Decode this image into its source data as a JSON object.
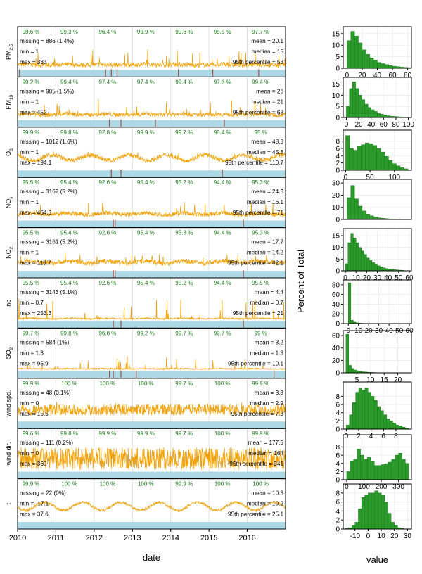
{
  "colors": {
    "series": "#f0a30a",
    "pct": "#1a7a1a",
    "bar_strip": "#add8e6",
    "missing_mark": "#a0524b",
    "hist": "#2a9a2a",
    "hist_edge": "#1b6e1b",
    "grid": "#d9d9d9"
  },
  "chart_data": [
    {
      "type": "line",
      "title": "",
      "xlabel": "date",
      "ylabel": "",
      "x_ticks": [
        "2010",
        "2011",
        "2012",
        "2013",
        "2014",
        "2015",
        "2016"
      ],
      "x_range": [
        "2010-01-01",
        "2016-12-31"
      ],
      "panels": [
        {
          "name": "PM",
          "sub": "2.5",
          "year_pct": [
            "98.6 %",
            "99.3 %",
            "96.4 %",
            "99.9 %",
            "99.6 %",
            "98.5 %",
            "97.7 %"
          ],
          "missing": "missing = 886 (1.4%)",
          "min": "min = 1",
          "max": "max = 333",
          "mean": "mean = 20.1",
          "median": "median = 15",
          "p95": "95th percentile = 53",
          "missing_marks": [
            2010.05,
            2012.3,
            2012.45,
            2012.6,
            2014.2,
            2015.1,
            2016.3
          ]
        },
        {
          "name": "PM",
          "sub": "10",
          "year_pct": [
            "99.2 %",
            "99.4 %",
            "97.4 %",
            "97.4 %",
            "99.4 %",
            "97.6 %",
            "99.4 %"
          ],
          "missing": "missing = 905 (1.5%)",
          "min": "min = 1",
          "max": "max = 452",
          "mean": "mean = 26",
          "median": "median = 21",
          "p95": "95th percentile = 63",
          "missing_marks": [
            2012.4,
            2012.7,
            2013.6,
            2015.4
          ]
        },
        {
          "name": "O",
          "sub": "3",
          "year_pct": [
            "99.9 %",
            "99.8 %",
            "97.8 %",
            "99.9 %",
            "99.7 %",
            "96.4 %",
            "95 %"
          ],
          "missing": "missing = 1012 (1.6%)",
          "min": "min = 1",
          "max": "max = 194.1",
          "mean": "mean = 48.8",
          "median": "median = 45.3",
          "p95": "95th percentile = 110.7",
          "missing_marks": [
            2012.45,
            2012.7,
            2015.35
          ]
        },
        {
          "name": "NO",
          "sub": "x",
          "year_pct": [
            "95.5 %",
            "95.4 %",
            "92.6 %",
            "95.4 %",
            "95.2 %",
            "94.4 %",
            "95.3 %"
          ],
          "missing": "missing = 3162 (5.2%)",
          "min": "min = 1",
          "max": "max = 464.3",
          "mean": "mean = 24.3",
          "median": "median = 16.1",
          "p95": "95th percentile = 71",
          "missing_marks": [
            2012.5,
            2012.55,
            2015.9
          ]
        },
        {
          "name": "NO",
          "sub": "2",
          "year_pct": [
            "95.5 %",
            "95.4 %",
            "92.6 %",
            "95.4 %",
            "95.3 %",
            "94.4 %",
            "95.3 %"
          ],
          "missing": "missing = 3161 (5.2%)",
          "min": "min = 1",
          "max": "max = 116.7",
          "mean": "mean = 17.7",
          "median": "median = 14.2",
          "p95": "95th percentile = 42.1",
          "missing_marks": [
            2012.5,
            2012.55,
            2015.9
          ]
        },
        {
          "name": "no",
          "sub": "",
          "year_pct": [
            "95.5 %",
            "95.4 %",
            "92.6 %",
            "95.4 %",
            "95.2 %",
            "94.4 %",
            "95.5 %"
          ],
          "missing": "missing = 3143 (5.1%)",
          "min": "min = 0.7",
          "max": "max = 253.3",
          "mean": "mean = 4.4",
          "median": "median = 0.7",
          "p95": "95th percentile = 21",
          "missing_marks": [
            2012.5,
            2012.7,
            2015.9
          ]
        },
        {
          "name": "SO",
          "sub": "2",
          "year_pct": [
            "99.7 %",
            "99.8 %",
            "96.8 %",
            "99.2 %",
            "99.7 %",
            "99.7 %",
            "99 %"
          ],
          "missing": "missing = 584 (1%)",
          "min": "min = 1.3",
          "max": "max = 95.9",
          "mean": "mean = 3.2",
          "median": "median = 1.3",
          "p95": "95th percentile = 10.1",
          "missing_marks": [
            2012.4,
            2012.5,
            2012.7,
            2013.1,
            2016.7
          ]
        },
        {
          "name": "wind spd.",
          "sub": "",
          "year_pct": [
            "99.9 %",
            "100 %",
            "100 %",
            "100 %",
            "99.7 %",
            "100 %",
            "99.9 %"
          ],
          "missing": "missing = 48 (0.1%)",
          "min": "min = 0",
          "max": "max = 15.5",
          "mean": "mean = 3.3",
          "median": "median = 2.9",
          "p95": "95th percentile = 7.3",
          "missing_marks": []
        },
        {
          "name": "wind dir.",
          "sub": "",
          "year_pct": [
            "99.6 %",
            "99.8 %",
            "99.9 %",
            "99.9 %",
            "99.7 %",
            "100 %",
            "99.9 %"
          ],
          "missing": "missing = 111 (0.2%)",
          "min": "min = 0",
          "max": "max = 360",
          "mean": "mean = 177.5",
          "median": "median = 164",
          "p95": "95th percentile = 341",
          "missing_marks": []
        },
        {
          "name": "t",
          "sub": "",
          "year_pct": [
            "99.9 %",
            "100 %",
            "100 %",
            "100 %",
            "99.9 %",
            "100 %",
            "100 %"
          ],
          "missing": "missing = 22 (0%)",
          "min": "min = -17.1",
          "max": "max = 37.6",
          "mean": "mean = 10.3",
          "median": "median = 10.2",
          "p95": "95th percentile = 25.1",
          "missing_marks": []
        }
      ]
    },
    {
      "type": "bar",
      "title": "",
      "xlabel": "value",
      "ylabel": "Percent of Total",
      "panels": [
        {
          "xlim": [
            -5,
            85
          ],
          "xticks": [
            0,
            20,
            40,
            60,
            80
          ],
          "ylim": [
            0,
            18
          ],
          "yticks": [
            0,
            5,
            10,
            15
          ],
          "bin_start": 0,
          "bin_width": 5,
          "values": [
            12,
            16,
            14,
            11,
            8,
            6,
            4.5,
            3.5,
            2.5,
            2,
            1.6,
            1.2,
            0.9,
            0.7,
            0.5,
            0.4,
            0.3
          ]
        },
        {
          "xlim": [
            -5,
            105
          ],
          "xticks": [
            0,
            20,
            40,
            60,
            80,
            100
          ],
          "ylim": [
            0,
            18
          ],
          "yticks": [
            0,
            5,
            10,
            15
          ],
          "bin_start": 0,
          "bin_width": 5,
          "values": [
            5,
            13,
            16,
            13,
            10,
            8,
            6,
            4.5,
            3.5,
            2.7,
            2,
            1.5,
            1.1,
            0.8,
            0.6,
            0.5,
            0.4,
            0.3,
            0.2
          ]
        },
        {
          "xlim": [
            -5,
            135
          ],
          "xticks": [
            0,
            50,
            100
          ],
          "ylim": [
            0,
            11
          ],
          "yticks": [
            0,
            2,
            4,
            6,
            8
          ],
          "bin_start": 0,
          "bin_width": 8,
          "values": [
            9.5,
            6,
            5.5,
            6.5,
            7,
            7.5,
            7.3,
            6.8,
            6,
            5,
            3.8,
            2.7,
            1.8,
            1.2,
            0.7,
            0.4
          ]
        },
        {
          "xlim": [
            -5,
            85
          ],
          "xticks": [],
          "ylim": [
            0,
            33
          ],
          "yticks": [
            0,
            10,
            20,
            30
          ],
          "bin_start": 0,
          "bin_width": 5,
          "values": [
            18,
            28,
            17,
            11,
            7,
            4.5,
            3,
            2,
            1.4,
            1,
            0.7,
            0.5,
            0.4,
            0.3
          ]
        },
        {
          "xlim": [
            -2,
            62
          ],
          "xticks": [
            0,
            10,
            20,
            30,
            40,
            50,
            60
          ],
          "ylim": [
            0,
            18
          ],
          "yticks": [
            0,
            5,
            10,
            15
          ],
          "bin_start": 0,
          "bin_width": 2.5,
          "values": [
            3,
            12,
            16,
            14,
            12,
            10,
            8.5,
            7,
            5.5,
            4.5,
            3.5,
            2.8,
            2.2,
            1.7,
            1.3,
            1,
            0.8,
            0.6,
            0.5,
            0.4,
            0.3,
            0.2
          ]
        },
        {
          "xlim": [
            -5,
            62
          ],
          "xticks": [
            0,
            10,
            20,
            30,
            40,
            50,
            60
          ],
          "ylim": [
            0,
            90
          ],
          "yticks": [
            0,
            20,
            40,
            60,
            80
          ],
          "bin_start": 0,
          "bin_width": 2.5,
          "values": [
            84,
            7,
            3,
            1.8,
            1.1,
            0.7,
            0.5,
            0.3,
            0.2,
            0.1
          ]
        },
        {
          "xlim": [
            0,
            25
          ],
          "xticks": [
            5,
            10,
            15,
            20
          ],
          "ylim": [
            0,
            68
          ],
          "yticks": [
            0,
            20,
            40,
            60
          ],
          "bin_start": 1,
          "bin_width": 1,
          "values": [
            62,
            12,
            7,
            4.5,
            3,
            2.2,
            1.6,
            1.2,
            0.9,
            0.7,
            0.5,
            0.4,
            0.3,
            0.2,
            0.2,
            0.1
          ]
        },
        {
          "xlim": [
            -0.5,
            10.5
          ],
          "xticks": [
            0,
            2,
            4,
            6,
            8
          ],
          "ylim": [
            0,
            11.5
          ],
          "yticks": [
            0,
            2,
            4,
            6,
            8
          ],
          "bin_start": 0,
          "bin_width": 0.5,
          "values": [
            1,
            3.5,
            6.5,
            9,
            10,
            9.5,
            10,
            9,
            8,
            7,
            5.5,
            4.5,
            3.5,
            2.5,
            2,
            1.5,
            1,
            0.8,
            0.5,
            0.3
          ]
        },
        {
          "xlim": [
            -20,
            375
          ],
          "xticks": [
            0,
            100,
            200,
            300
          ],
          "ylim": [
            0,
            11
          ],
          "yticks": [
            0,
            2,
            4,
            6,
            8
          ],
          "bin_start": 0,
          "bin_width": 20,
          "values": [
            2,
            4.5,
            5,
            7.5,
            6,
            5,
            5.5,
            4.5,
            3.5,
            3.5,
            3.7,
            3.9,
            4.3,
            5,
            6,
            6.5,
            5,
            4
          ]
        },
        {
          "xlim": [
            -19,
            33
          ],
          "xticks": [
            -10,
            0,
            10,
            20,
            30
          ],
          "ylim": [
            0,
            10
          ],
          "yticks": [
            0,
            2,
            4,
            6,
            8
          ],
          "bin_start": -17.5,
          "bin_width": 2.5,
          "values": [
            0.1,
            0.3,
            0.8,
            1.5,
            4.5,
            7,
            7.5,
            8,
            8,
            8.5,
            8,
            7.5,
            6,
            3.5,
            1.5,
            0.8,
            0.3,
            0.1
          ]
        }
      ]
    }
  ]
}
